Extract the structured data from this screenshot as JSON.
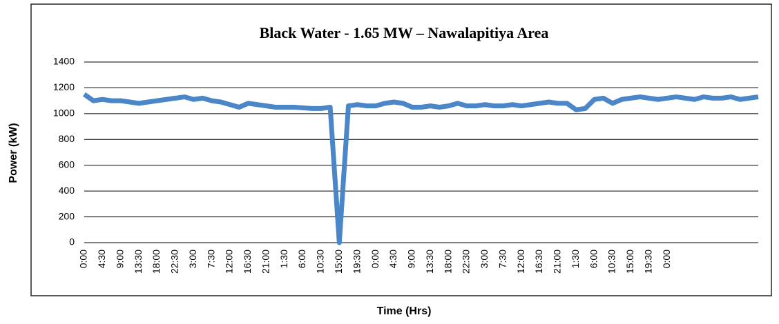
{
  "chart_data": {
    "type": "line",
    "title": "Black Water - 1.65 MW – Nawalapitiya Area",
    "x_label": "Time (Hrs)",
    "y_label": "Power (kW)",
    "categories": [
      "0:00",
      null,
      "4:30",
      null,
      "9:00",
      null,
      "13:30",
      null,
      "18:00",
      null,
      "22:30",
      null,
      "3:00",
      null,
      "7:30",
      null,
      "12:00",
      null,
      "16:30",
      null,
      "21:00",
      null,
      "1:30",
      null,
      "6:00",
      null,
      "10:30",
      null,
      "15:00",
      null,
      "19:30",
      null,
      "0:00",
      null,
      "4:30",
      null,
      "9:00",
      null,
      "13:30",
      null,
      "18:00",
      null,
      "22:30",
      null,
      "3:00",
      null,
      "7:30",
      null,
      "12:00",
      null,
      "16:30",
      null,
      "21:00",
      null,
      "1:30",
      null,
      "6:00",
      null,
      "10:30",
      null,
      "15:00",
      null,
      "19:30",
      null,
      "0:00",
      null,
      null,
      null,
      null,
      null,
      null,
      null,
      null,
      null,
      null
    ],
    "series": [
      {
        "name": "Power",
        "color": "#4a86c8",
        "values": [
          1150,
          1100,
          1110,
          1100,
          1100,
          1090,
          1080,
          1090,
          1100,
          1110,
          1120,
          1130,
          1110,
          1120,
          1100,
          1090,
          1070,
          1050,
          1080,
          1070,
          1060,
          1050,
          1050,
          1050,
          1045,
          1040,
          1040,
          1050,
          0,
          1060,
          1070,
          1060,
          1060,
          1080,
          1090,
          1080,
          1050,
          1050,
          1060,
          1050,
          1060,
          1080,
          1060,
          1060,
          1070,
          1060,
          1060,
          1070,
          1060,
          1070,
          1080,
          1090,
          1080,
          1080,
          1030,
          1040,
          1110,
          1120,
          1080,
          1110,
          1120,
          1130,
          1120,
          1110,
          1120,
          1130,
          1120,
          1110,
          1130,
          1120,
          1120,
          1130,
          1110,
          1120,
          1130
        ]
      }
    ],
    "ylim": [
      0,
      1400
    ],
    "yticks": [
      0,
      200,
      400,
      600,
      800,
      1000,
      1200,
      1400
    ],
    "grid": true
  }
}
